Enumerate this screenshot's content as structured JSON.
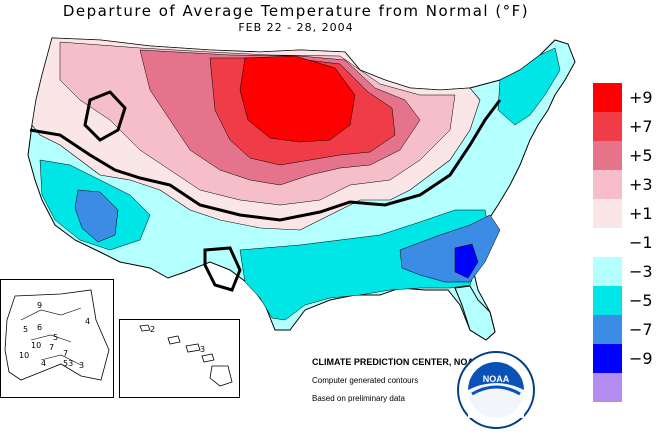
{
  "header": {
    "title": "Departure of Average Temperature from Normal (°F)",
    "subtitle": "FEB 22 - 28, 2004"
  },
  "legend": {
    "items": [
      {
        "label": "+9",
        "color": "#ff0000"
      },
      {
        "label": "+7",
        "color": "#f03c46"
      },
      {
        "label": "+5",
        "color": "#e6738c"
      },
      {
        "label": "+3",
        "color": "#f5bec8"
      },
      {
        "label": "+1",
        "color": "#fae6e6"
      },
      {
        "label": "−1",
        "color": "#ffffff"
      },
      {
        "label": "−3",
        "color": "#b4ffff"
      },
      {
        "label": "−5",
        "color": "#00e6e6"
      },
      {
        "label": "−7",
        "color": "#3c8ce6"
      },
      {
        "label": "−9",
        "color": "#0000ff"
      },
      {
        "label": "",
        "color": "#b48cf0"
      }
    ]
  },
  "credits": {
    "org": "CLIMATE PREDICTION CENTER, NOAA",
    "line1": "Computer generated contours",
    "line2": "Based on preliminary data"
  },
  "alaska_labels": [
    "9",
    "5",
    "6",
    "5",
    "4",
    "10",
    "10",
    "7",
    "7",
    "4",
    "53",
    "3"
  ],
  "hawaii_labels": [
    "2",
    "3"
  ],
  "logo": {
    "text": "NOAA"
  }
}
